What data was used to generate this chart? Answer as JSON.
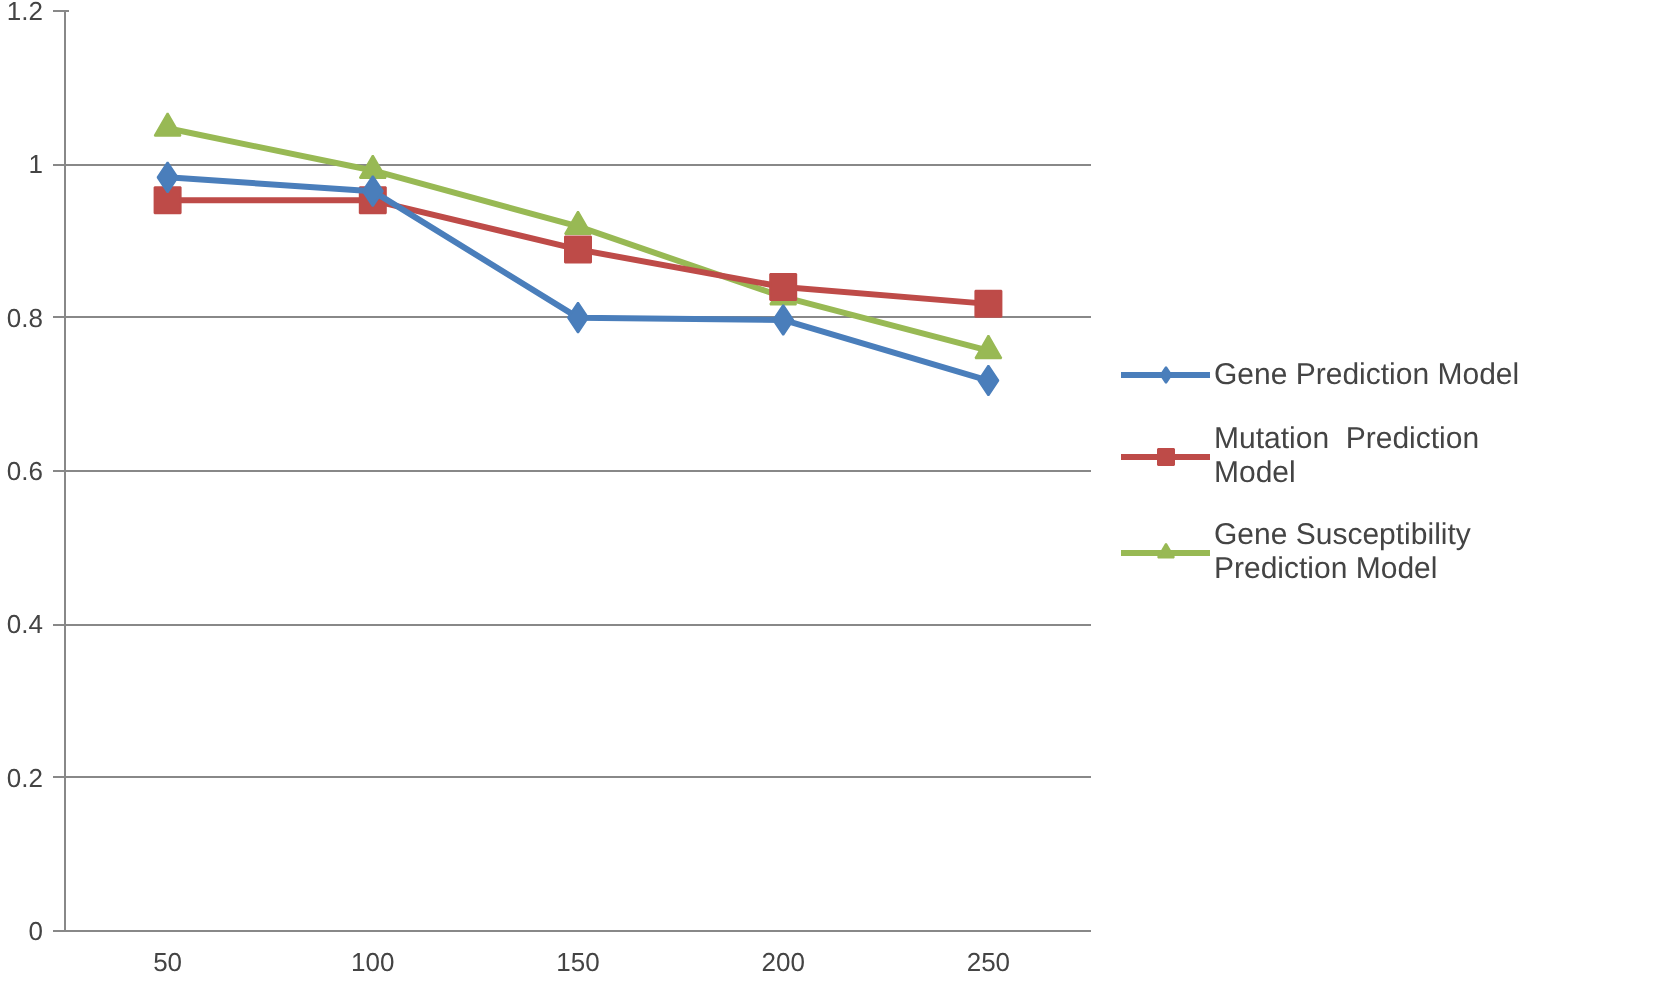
{
  "chart_data": {
    "type": "line",
    "categories": [
      "50",
      "100",
      "150",
      "200",
      "250"
    ],
    "ylim": [
      0,
      1.2
    ],
    "yticks": [
      0,
      0.2,
      0.4,
      0.6,
      0.8,
      1,
      1.2
    ],
    "grid": "y",
    "legend": "right",
    "line_style": "solid",
    "series": [
      {
        "name": "Gene Prediction Model",
        "color": "#4a7ebb",
        "marker": "diamond",
        "values": [
          0.983,
          0.965,
          0.8,
          0.797,
          0.718
        ]
      },
      {
        "name": "Mutation  Prediction Model",
        "color": "#be4b48",
        "marker": "square",
        "values": [
          0.953,
          0.953,
          0.889,
          0.84,
          0.818
        ]
      },
      {
        "name": "Gene Susceptibility Prediction Model",
        "color": "#98b954",
        "marker": "triangle",
        "values": [
          1.047,
          0.992,
          0.919,
          0.827,
          0.757
        ]
      }
    ]
  }
}
